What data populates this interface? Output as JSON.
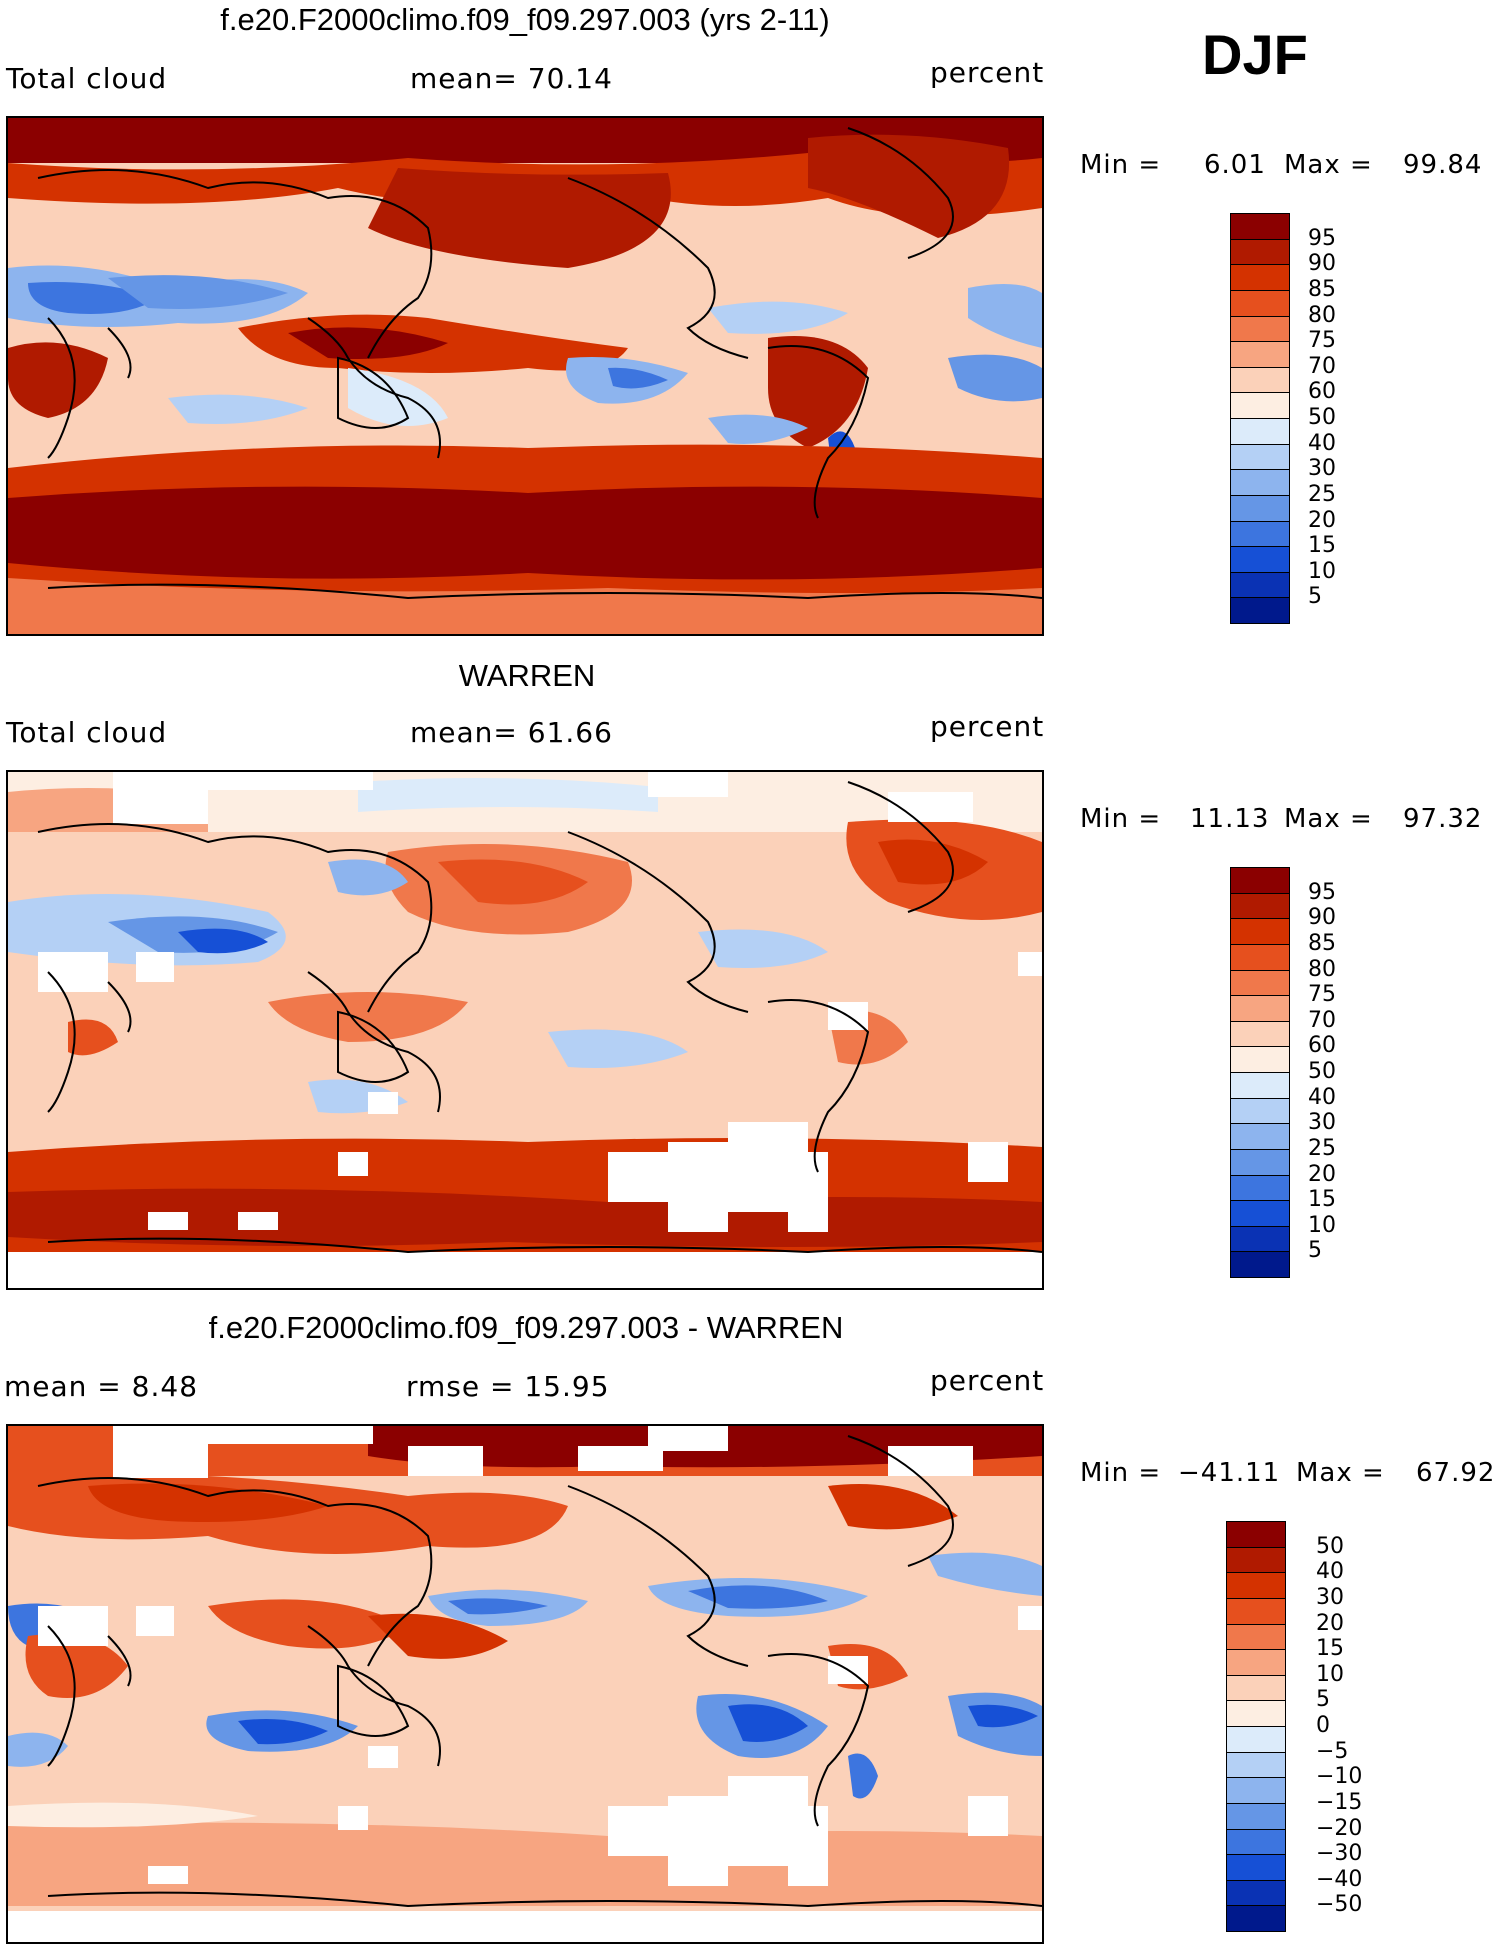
{
  "season": "DJF",
  "panels": [
    {
      "title": "f.e20.F2000climo.f09_f09.297.003 (yrs 2-11)",
      "left_label": "Total cloud",
      "center_label": "mean=   70.14",
      "units": "percent",
      "min_label": "Min =",
      "min_value": "6.01",
      "max_label": "Max =",
      "max_value": "99.84",
      "levels": [
        "95",
        "90",
        "85",
        "80",
        "75",
        "70",
        "60",
        "50",
        "40",
        "30",
        "25",
        "20",
        "15",
        "10",
        "5"
      ],
      "colors": [
        "#8b0000",
        "#b01a00",
        "#d43200",
        "#e6501e",
        "#f0784b",
        "#f7a581",
        "#fbd1b9",
        "#fdeee2",
        "#dcebfa",
        "#b4d0f5",
        "#8db4ee",
        "#6596e6",
        "#3d75df",
        "#1650d6",
        "#0a32b4",
        "#00198c"
      ]
    },
    {
      "title": "WARREN",
      "left_label": "Total cloud",
      "center_label": "mean=   61.66",
      "units": "percent",
      "min_label": "Min =",
      "min_value": "11.13",
      "max_label": "Max =",
      "max_value": "97.32",
      "levels": [
        "95",
        "90",
        "85",
        "80",
        "75",
        "70",
        "60",
        "50",
        "40",
        "30",
        "25",
        "20",
        "15",
        "10",
        "5"
      ],
      "colors": [
        "#8b0000",
        "#b01a00",
        "#d43200",
        "#e6501e",
        "#f0784b",
        "#f7a581",
        "#fbd1b9",
        "#fdeee2",
        "#dcebfa",
        "#b4d0f5",
        "#8db4ee",
        "#6596e6",
        "#3d75df",
        "#1650d6",
        "#0a32b4",
        "#00198c"
      ]
    },
    {
      "title": "f.e20.F2000climo.f09_f09.297.003 - WARREN",
      "left_label": "mean =    8.48",
      "center_label": "rmse =   15.95",
      "units": "percent",
      "min_label": "Min =",
      "min_value": "−41.11",
      "max_label": "Max =",
      "max_value": "67.92",
      "levels": [
        "50",
        "40",
        "30",
        "20",
        "15",
        "10",
        "5",
        "0",
        "−5",
        "−10",
        "−15",
        "−20",
        "−30",
        "−40",
        "−50"
      ],
      "colors": [
        "#8b0000",
        "#b01a00",
        "#d43200",
        "#e6501e",
        "#f0784b",
        "#f7a581",
        "#fbd1b9",
        "#fdeee2",
        "#dcebfa",
        "#b4d0f5",
        "#8db4ee",
        "#6596e6",
        "#3d75df",
        "#1650d6",
        "#0a32b4",
        "#00198c"
      ]
    }
  ]
}
